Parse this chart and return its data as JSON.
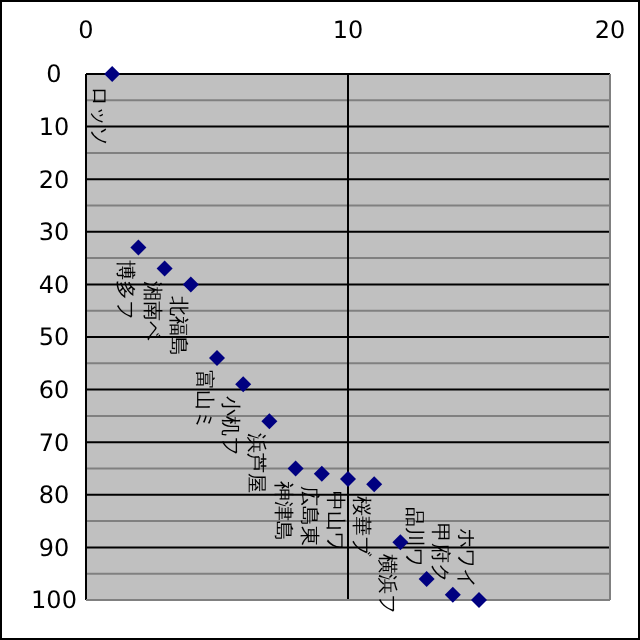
{
  "chart_data": {
    "type": "scatter",
    "x": [
      1,
      2,
      3,
      4,
      5,
      6,
      7,
      8,
      9,
      10,
      11,
      12,
      13,
      14,
      15
    ],
    "values": [
      0,
      33,
      37,
      40,
      54,
      59,
      66,
      75,
      76,
      77,
      78,
      89,
      96,
      99,
      100
    ],
    "color": "#000080",
    "marker": "diamond",
    "grid": true,
    "xlim": [
      0,
      20
    ],
    "xticks": [
      0,
      10,
      20
    ],
    "ylim": [
      100,
      0
    ],
    "yticks": [
      0,
      {
        "value": 5,
        "label": null
      },
      10,
      {
        "value": 15,
        "label": null
      },
      20,
      {
        "value": 25,
        "label": null
      },
      30,
      {
        "value": 35,
        "label": null
      },
      40,
      {
        "value": 45,
        "label": null
      },
      50,
      {
        "value": 55,
        "label": null
      },
      60,
      {
        "value": 65,
        "label": null
      },
      70,
      {
        "value": 75,
        "label": null
      },
      80,
      {
        "value": 85,
        "label": null
      },
      90,
      {
        "value": 95,
        "label": null
      },
      100
    ],
    "annotations": [
      {
        "text": "ロッソ",
        "x": 1,
        "y": 0
      },
      {
        "text": "博多フ",
        "x": 2,
        "y": 33
      },
      {
        "text": "湘南ベ",
        "x": 3,
        "y": 37
      },
      {
        "text": "北福島",
        "x": 4,
        "y": 40
      },
      {
        "text": "富山ミ",
        "x": 5,
        "y": 54
      },
      {
        "text": "小机フ",
        "x": 6,
        "y": 59
      },
      {
        "text": "浜芦屋",
        "x": 7,
        "y": 66
      },
      {
        "text": "神津島",
        "x": 8,
        "y": 75
      },
      {
        "text": "広島東",
        "x": 9,
        "y": 76
      },
      {
        "text": "中山ワ",
        "x": 10,
        "y": 77
      },
      {
        "text": "桜華ブ",
        "x": 11,
        "y": 78
      },
      {
        "text": "横浜フ",
        "x": 12,
        "y": 89
      },
      {
        "text": "品川ワ",
        "x": 13,
        "y": 96
      },
      {
        "text": "甲府ク",
        "x": 14,
        "y": 99
      },
      {
        "text": "ホワイ",
        "x": 15,
        "y": 100
      }
    ]
  }
}
